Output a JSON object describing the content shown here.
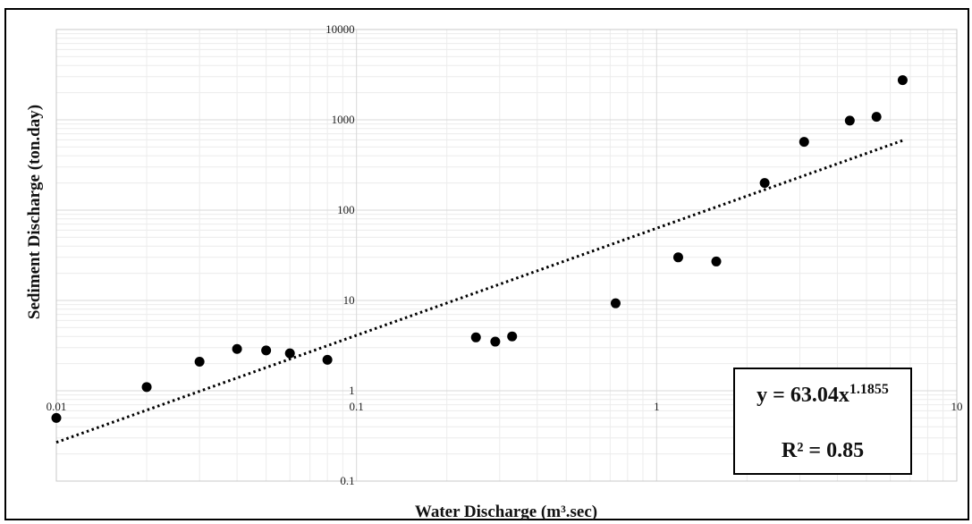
{
  "chart_data": {
    "type": "scatter",
    "xlabel": "Water Discharge (m³.sec)",
    "ylabel": "Sediment Discharge (ton.day)",
    "x_scale": "log",
    "y_scale": "log",
    "xlim": [
      0.01,
      10
    ],
    "ylim": [
      0.1,
      10000
    ],
    "x_tick_labels": [
      "0.01",
      "0.1",
      "1",
      "10"
    ],
    "y_tick_labels": [
      "0.1",
      "1",
      "10",
      "100",
      "1000",
      "10000"
    ],
    "grid": true,
    "points": [
      {
        "x": 0.01,
        "y": 0.5
      },
      {
        "x": 0.02,
        "y": 1.1
      },
      {
        "x": 0.03,
        "y": 2.1
      },
      {
        "x": 0.04,
        "y": 2.9
      },
      {
        "x": 0.05,
        "y": 2.8
      },
      {
        "x": 0.06,
        "y": 2.6
      },
      {
        "x": 0.08,
        "y": 2.2
      },
      {
        "x": 0.25,
        "y": 3.9
      },
      {
        "x": 0.29,
        "y": 3.5
      },
      {
        "x": 0.33,
        "y": 4.0
      },
      {
        "x": 0.73,
        "y": 9.3
      },
      {
        "x": 1.18,
        "y": 30
      },
      {
        "x": 1.58,
        "y": 27
      },
      {
        "x": 2.29,
        "y": 200
      },
      {
        "x": 3.1,
        "y": 570
      },
      {
        "x": 4.4,
        "y": 980
      },
      {
        "x": 5.4,
        "y": 1080
      },
      {
        "x": 6.6,
        "y": 2750
      }
    ],
    "trendline": {
      "type": "power",
      "coefficient": 63.04,
      "exponent": 1.1855,
      "style": "dotted",
      "x_range": [
        0.01,
        6.6
      ]
    },
    "annotation": {
      "equation_prefix": "y = 63.04x",
      "equation_exponent": "1.1855",
      "r_squared": "R² = 0.85"
    },
    "colors": {
      "points": "#000000",
      "trendline": "#000000",
      "grid": "#d9d9d9"
    }
  }
}
